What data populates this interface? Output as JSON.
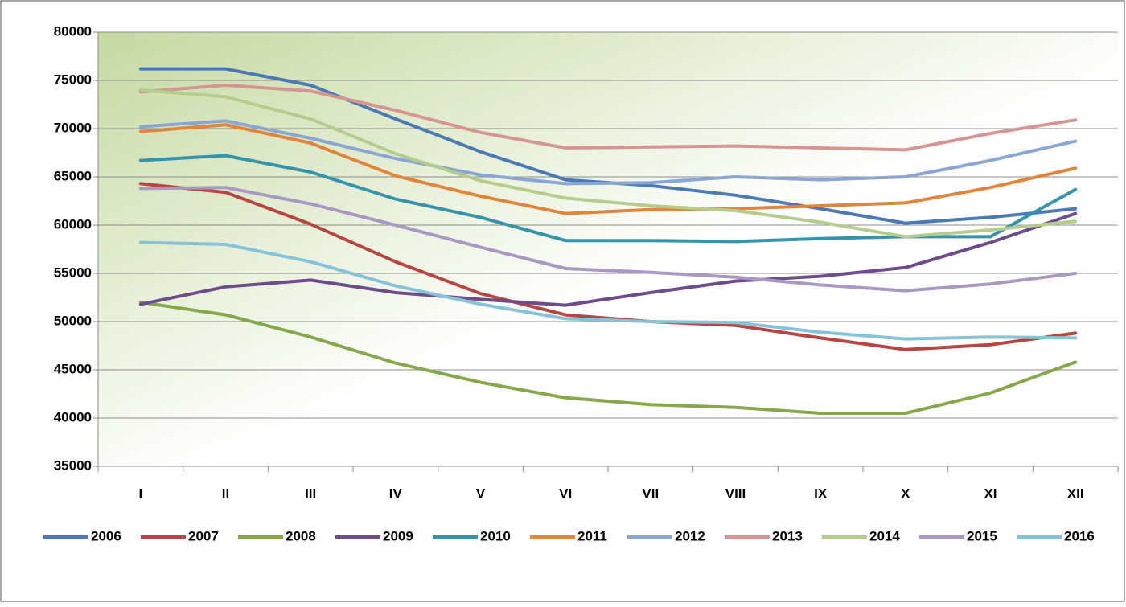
{
  "chart_data": {
    "type": "line",
    "categories": [
      "I",
      "II",
      "III",
      "IV",
      "V",
      "VI",
      "VII",
      "VIII",
      "IX",
      "X",
      "XI",
      "XII"
    ],
    "ylim": [
      35000,
      80000
    ],
    "yticks": [
      35000,
      40000,
      45000,
      50000,
      55000,
      60000,
      65000,
      70000,
      75000,
      80000
    ],
    "grid": true,
    "legend": "bottom",
    "series": [
      {
        "name": "2006",
        "color": "#4a7ab5",
        "values": [
          76200,
          76200,
          74500,
          71000,
          67600,
          64700,
          64100,
          63100,
          61700,
          60200,
          60800,
          61700
        ]
      },
      {
        "name": "2007",
        "color": "#b84541",
        "values": [
          64300,
          63400,
          60100,
          56200,
          52900,
          50700,
          50000,
          49600,
          48300,
          47100,
          47600,
          48800
        ]
      },
      {
        "name": "2008",
        "color": "#86a84a",
        "values": [
          52000,
          50700,
          48400,
          45700,
          43700,
          42100,
          41400,
          41100,
          40500,
          40500,
          42600,
          45800
        ]
      },
      {
        "name": "2009",
        "color": "#6e4c8c",
        "values": [
          51800,
          53600,
          54300,
          53000,
          52300,
          51700,
          53000,
          54200,
          54700,
          55600,
          58200,
          61200
        ]
      },
      {
        "name": "2010",
        "color": "#3594a9",
        "values": [
          66700,
          67200,
          65500,
          62700,
          60800,
          58400,
          58400,
          58300,
          58600,
          58800,
          58800,
          63700
        ]
      },
      {
        "name": "2011",
        "color": "#e0853a",
        "values": [
          69700,
          70400,
          68500,
          65100,
          63000,
          61200,
          61600,
          61700,
          62000,
          62300,
          63900,
          65900
        ]
      },
      {
        "name": "2012",
        "color": "#8aa6d4",
        "values": [
          70200,
          70800,
          69000,
          66900,
          65200,
          64300,
          64400,
          65000,
          64700,
          65000,
          66700,
          68700
        ]
      },
      {
        "name": "2013",
        "color": "#d69492",
        "values": [
          73800,
          74500,
          73900,
          71900,
          69600,
          68000,
          68100,
          68200,
          68000,
          67800,
          69500,
          70900
        ]
      },
      {
        "name": "2014",
        "color": "#b5cd8c",
        "values": [
          74000,
          73300,
          71000,
          67400,
          64600,
          62800,
          62000,
          61500,
          60300,
          58800,
          59500,
          60400
        ]
      },
      {
        "name": "2015",
        "color": "#a898c2",
        "values": [
          63800,
          63900,
          62200,
          60000,
          57700,
          55500,
          55100,
          54600,
          53800,
          53200,
          53900,
          55000
        ]
      },
      {
        "name": "2016",
        "color": "#86c3d8",
        "values": [
          58200,
          58000,
          56200,
          53700,
          51800,
          50300,
          50000,
          49900,
          48900,
          48200,
          48400,
          48300
        ]
      }
    ]
  }
}
